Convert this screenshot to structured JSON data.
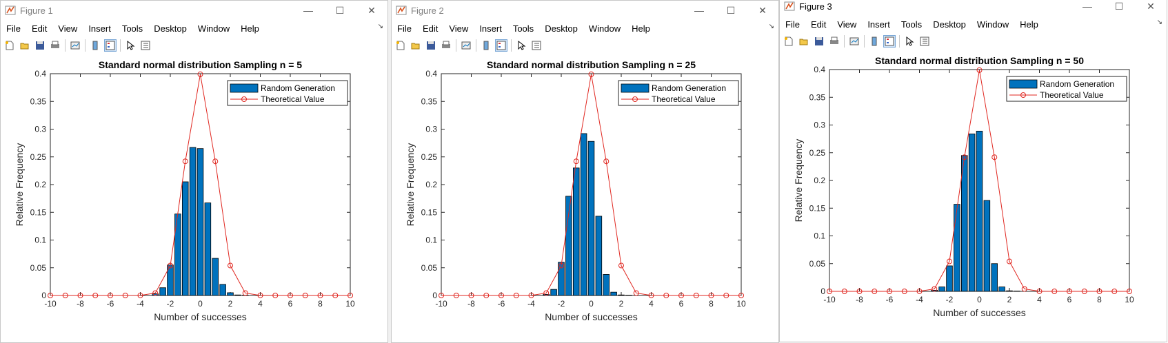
{
  "colors": {
    "bar": "#0072BD",
    "theory": "#E0261F"
  },
  "menu": [
    "File",
    "Edit",
    "View",
    "Insert",
    "Tools",
    "Desktop",
    "Window",
    "Help"
  ],
  "shared": {
    "xlabel": "Number of successes",
    "ylabel": "Relative Frequency",
    "legend": [
      "Random Generation",
      "Theoretical Value"
    ],
    "xticks": [
      "-10",
      "-8",
      "-6",
      "-4",
      "-2",
      "0",
      "2",
      "4",
      "6",
      "8",
      "10"
    ],
    "yticks": [
      "0",
      "0.05",
      "0.1",
      "0.15",
      "0.2",
      "0.25",
      "0.3",
      "0.35",
      "0.4"
    ]
  },
  "figures": [
    {
      "title": "Figure 1",
      "plot_title": "Standard normal distribution Sampling n = 5"
    },
    {
      "title": "Figure 2",
      "plot_title": "Standard normal distribution Sampling n = 25"
    },
    {
      "title": "Figure 3",
      "plot_title": "Standard normal distribution Sampling n = 50"
    }
  ],
  "chart_data": [
    {
      "type": "bar",
      "title": "Standard normal distribution Sampling n = 5",
      "xlabel": "Number of successes",
      "ylabel": "Relative Frequency",
      "xlim": [
        -10,
        10
      ],
      "ylim": [
        0,
        0.4
      ],
      "legend_position": "top-right",
      "bars": {
        "name": "Random Generation",
        "x": [
          -3,
          -2.5,
          -2,
          -1.5,
          -1,
          -0.5,
          0,
          0.5,
          1,
          1.5,
          2,
          2.5,
          3,
          3.5
        ],
        "values": [
          0.003,
          0.014,
          0.055,
          0.147,
          0.205,
          0.267,
          0.265,
          0.167,
          0.067,
          0.02,
          0.005,
          0.001,
          0.0005,
          0
        ]
      },
      "line": {
        "name": "Theoretical Value",
        "x": [
          -10,
          -9,
          -8,
          -7,
          -6,
          -5,
          -4,
          -3,
          -2,
          -1,
          0,
          1,
          2,
          3,
          4,
          5,
          6,
          7,
          8,
          9,
          10
        ],
        "values": [
          0,
          0,
          0,
          0,
          0,
          0,
          0.0001,
          0.0044,
          0.054,
          0.242,
          0.399,
          0.242,
          0.054,
          0.0044,
          0.0001,
          0,
          0,
          0,
          0,
          0,
          0
        ]
      }
    },
    {
      "type": "bar",
      "title": "Standard normal distribution Sampling n = 25",
      "xlabel": "Number of successes",
      "ylabel": "Relative Frequency",
      "xlim": [
        -10,
        10
      ],
      "ylim": [
        0,
        0.4
      ],
      "legend_position": "top-right",
      "bars": {
        "name": "Random Generation",
        "x": [
          -3,
          -2.5,
          -2,
          -1.5,
          -1,
          -0.5,
          0,
          0.5,
          1,
          1.5,
          2,
          2.5,
          3
        ],
        "values": [
          0.002,
          0.011,
          0.06,
          0.179,
          0.23,
          0.292,
          0.278,
          0.143,
          0.038,
          0.006,
          0.001,
          0.0005,
          0
        ]
      },
      "line": {
        "name": "Theoretical Value",
        "x": [
          -10,
          -9,
          -8,
          -7,
          -6,
          -5,
          -4,
          -3,
          -2,
          -1,
          0,
          1,
          2,
          3,
          4,
          5,
          6,
          7,
          8,
          9,
          10
        ],
        "values": [
          0,
          0,
          0,
          0,
          0,
          0,
          0.0001,
          0.0044,
          0.054,
          0.242,
          0.399,
          0.242,
          0.054,
          0.0044,
          0.0001,
          0,
          0,
          0,
          0,
          0,
          0
        ]
      }
    },
    {
      "type": "bar",
      "title": "Standard normal distribution Sampling n = 50",
      "xlabel": "Number of successes",
      "ylabel": "Relative Frequency",
      "xlim": [
        -10,
        10
      ],
      "ylim": [
        0,
        0.4
      ],
      "legend_position": "top-right",
      "bars": {
        "name": "Random Generation",
        "x": [
          -3,
          -2.5,
          -2,
          -1.5,
          -1,
          -0.5,
          0,
          0.5,
          1,
          1.5,
          2,
          2.5,
          3
        ],
        "values": [
          0.002,
          0.008,
          0.046,
          0.157,
          0.245,
          0.284,
          0.289,
          0.164,
          0.05,
          0.008,
          0.001,
          0.0005,
          0
        ]
      },
      "line": {
        "name": "Theoretical Value",
        "x": [
          -10,
          -9,
          -8,
          -7,
          -6,
          -5,
          -4,
          -3,
          -2,
          -1,
          0,
          1,
          2,
          3,
          4,
          5,
          6,
          7,
          8,
          9,
          10
        ],
        "values": [
          0,
          0,
          0,
          0,
          0,
          0,
          0.0001,
          0.0044,
          0.054,
          0.242,
          0.399,
          0.242,
          0.054,
          0.0044,
          0.0001,
          0,
          0,
          0,
          0,
          0,
          0
        ]
      }
    }
  ]
}
